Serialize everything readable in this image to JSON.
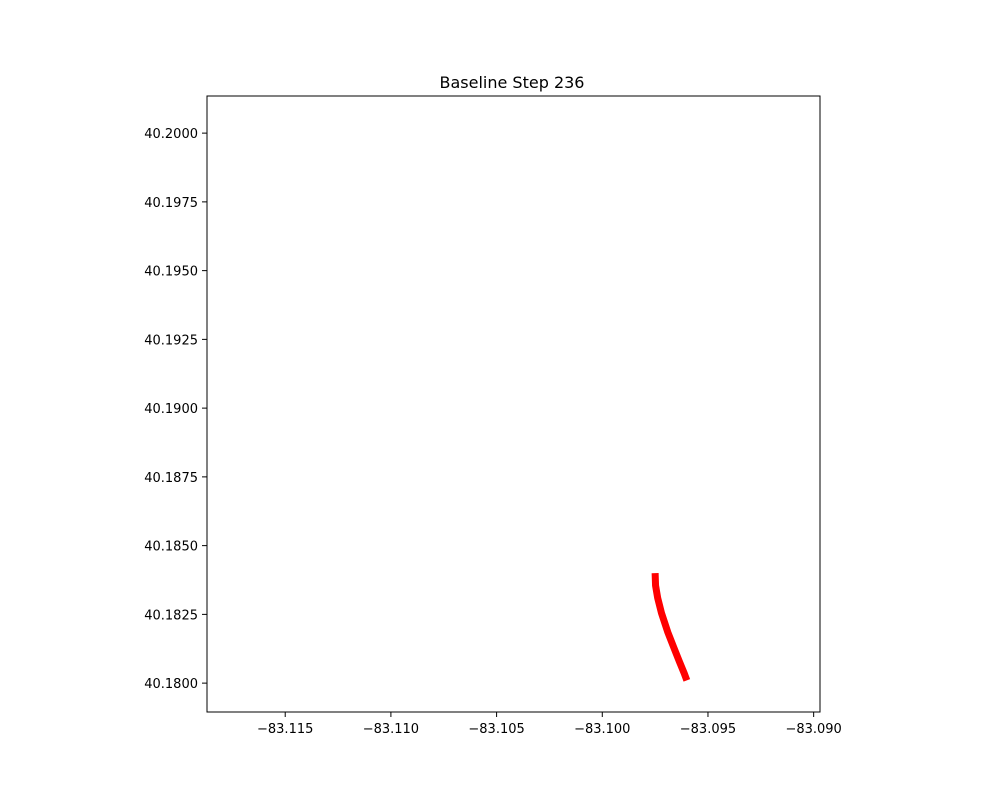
{
  "chart_data": {
    "type": "line",
    "title": "Baseline Step 236",
    "xlabel": "",
    "ylabel": "",
    "xlim": [
      -83.1187,
      -83.0897
    ],
    "ylim": [
      40.17895,
      40.20135
    ],
    "x_ticks": [
      -83.115,
      -83.11,
      -83.105,
      -83.1,
      -83.095,
      -83.09
    ],
    "x_tick_labels": [
      "−83.115",
      "−83.110",
      "−83.105",
      "−83.100",
      "−83.095",
      "−83.090"
    ],
    "y_ticks": [
      40.2,
      40.1975,
      40.195,
      40.1925,
      40.19,
      40.1875,
      40.185,
      40.1825,
      40.18
    ],
    "y_tick_labels": [
      "40.2000",
      "40.1975",
      "40.1950",
      "40.1925",
      "40.1900",
      "40.1875",
      "40.1850",
      "40.1825",
      "40.1800"
    ],
    "grid": false,
    "series": [
      {
        "color": "#ff0000",
        "points": [
          [
            -83.0975,
            40.184
          ],
          [
            -83.09748,
            40.18355
          ],
          [
            -83.09738,
            40.1831
          ],
          [
            -83.0972,
            40.18255
          ],
          [
            -83.0969,
            40.18185
          ],
          [
            -83.09662,
            40.1813
          ],
          [
            -83.09635,
            40.18078
          ],
          [
            -83.09612,
            40.18035
          ],
          [
            -83.096,
            40.1801
          ]
        ]
      }
    ]
  }
}
